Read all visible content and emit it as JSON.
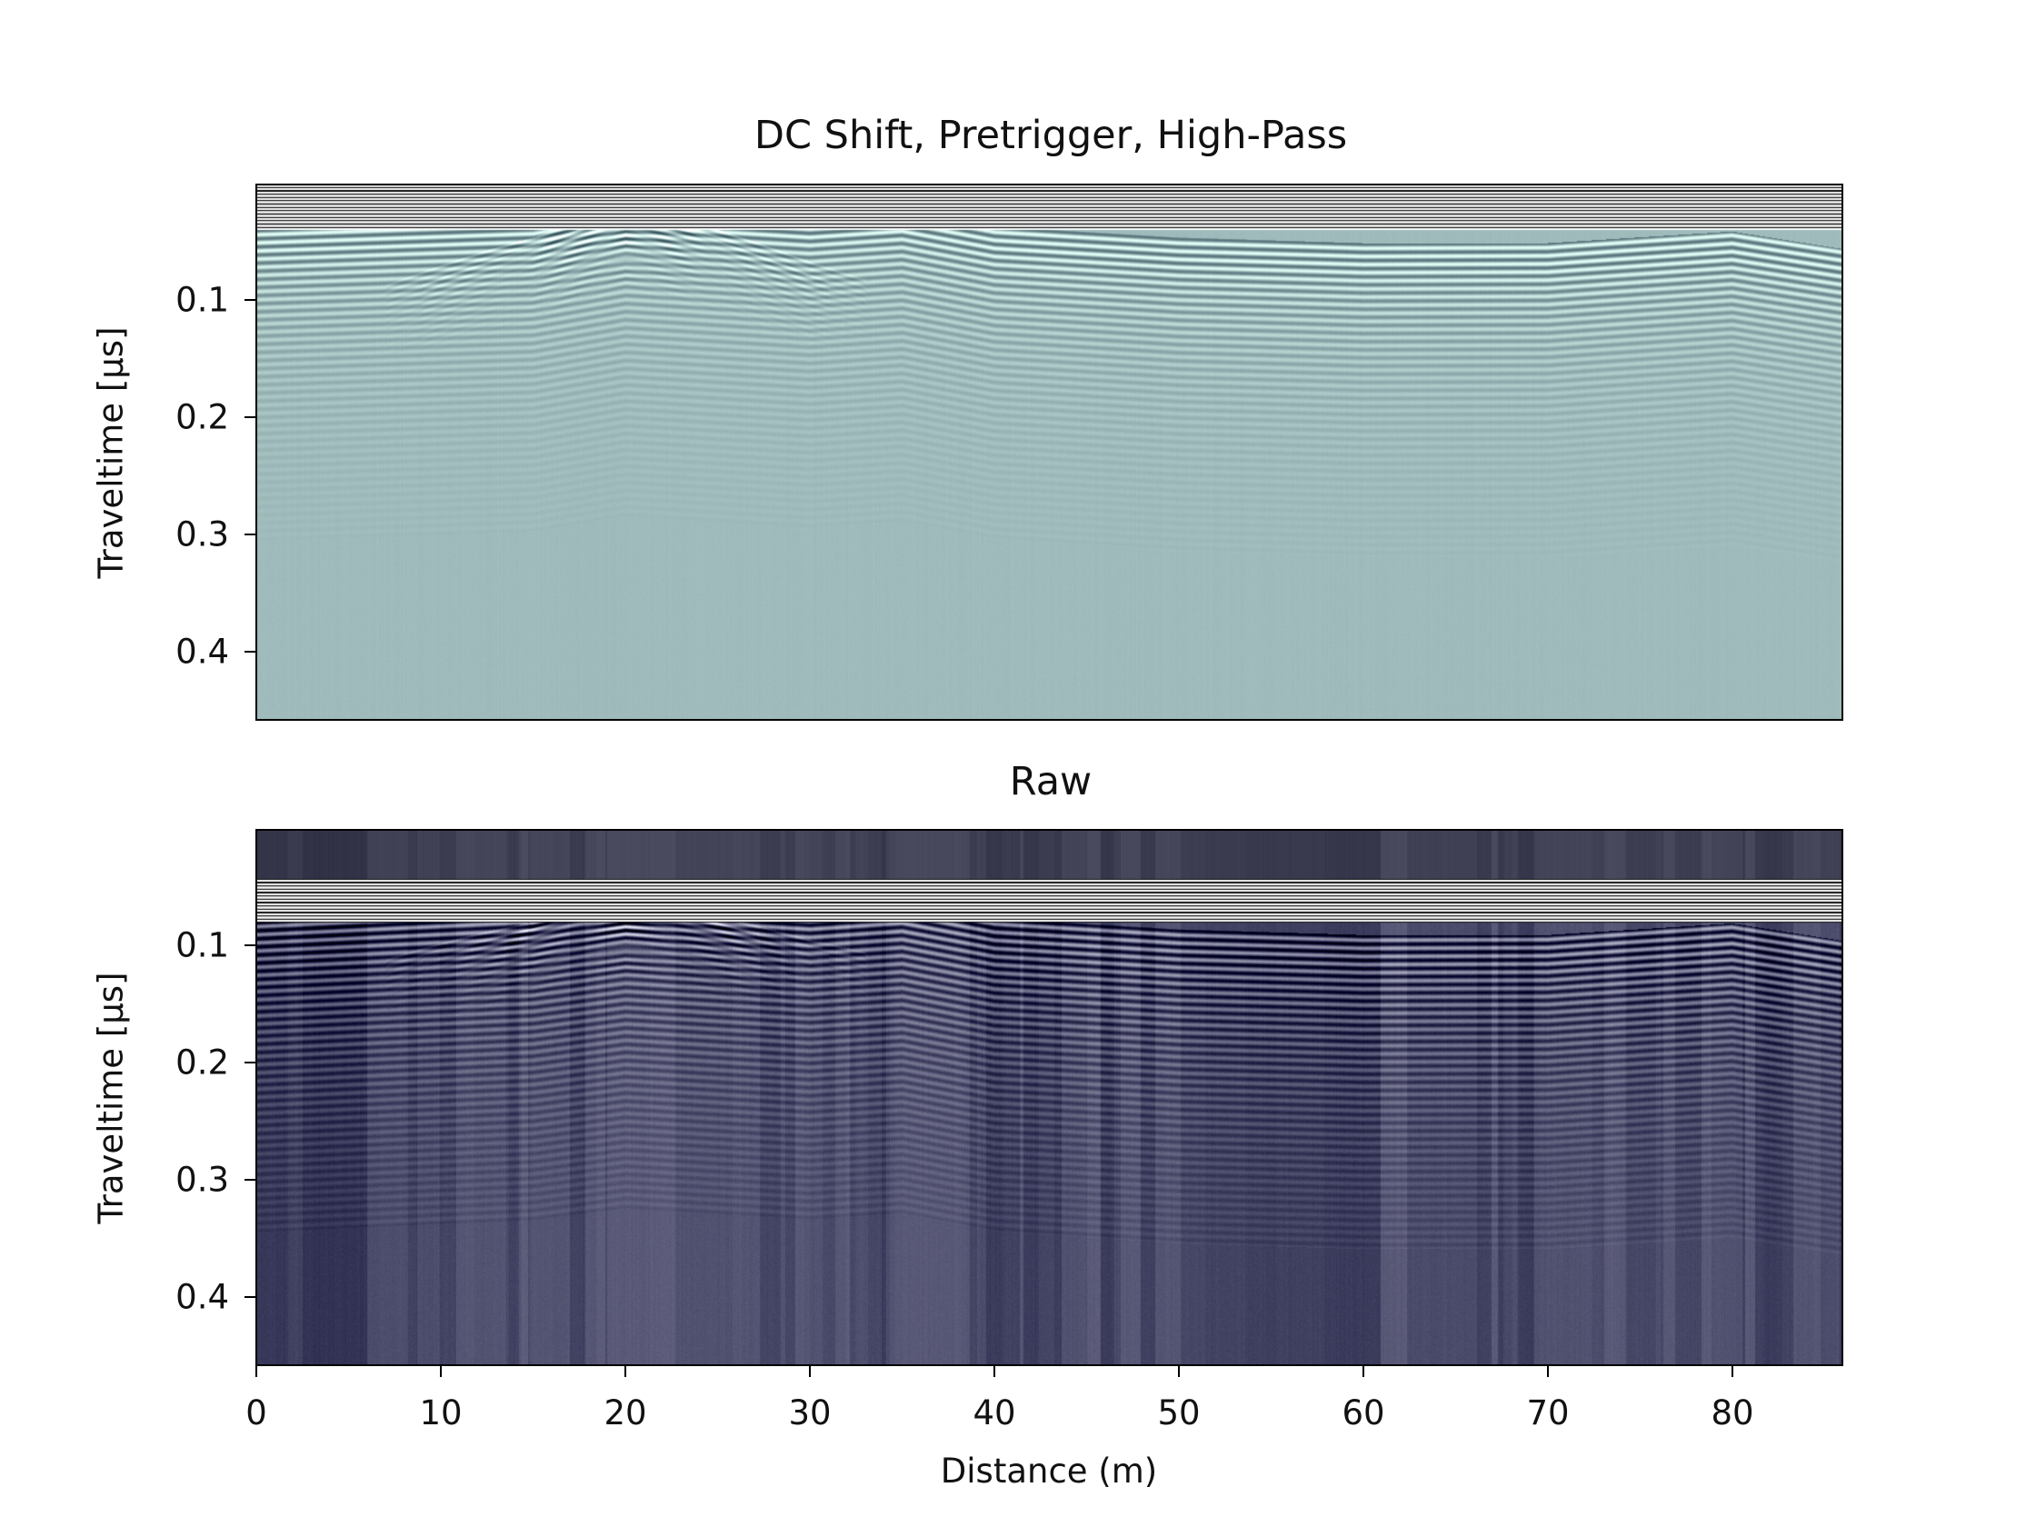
{
  "chart_data": [
    {
      "type": "heatmap",
      "title": "DC Shift, Pretrigger, High-Pass",
      "ylabel": "Traveltime [µs]",
      "xlabel": "",
      "xlim": [
        0,
        86
      ],
      "ylim": [
        0.46,
        0.0
      ],
      "yticks": [
        0.1,
        0.2,
        0.3,
        0.4
      ],
      "ytick_labels": [
        "0.1",
        "0.2",
        "0.3",
        "0.4"
      ],
      "xticks": [],
      "colormap": "bone",
      "background_color": "#9fbbbb",
      "features": {
        "direct_wave_bands_us": [
          0.01,
          0.02,
          0.035
        ],
        "surface_reflection_us": {
          "x": [
            0,
            15,
            20,
            25,
            30,
            35,
            40,
            50,
            60,
            70,
            75,
            80,
            86
          ],
          "y": [
            0.055,
            0.048,
            0.035,
            0.04,
            0.045,
            0.04,
            0.055,
            0.065,
            0.07,
            0.07,
            0.065,
            0.06,
            0.075
          ]
        },
        "diffraction_apex_x_m": [
          19,
          21
        ]
      }
    },
    {
      "type": "heatmap",
      "title": "Raw",
      "ylabel": "Traveltime [µs]",
      "xlabel": "Distance (m)",
      "xlim": [
        0,
        86
      ],
      "ylim": [
        0.46,
        0.0
      ],
      "yticks": [
        0.1,
        0.2,
        0.3,
        0.4
      ],
      "ytick_labels": [
        "0.1",
        "0.2",
        "0.3",
        "0.4"
      ],
      "xticks": [
        0,
        10,
        20,
        30,
        40,
        50,
        60,
        70,
        80
      ],
      "xtick_labels": [
        "0",
        "10",
        "20",
        "30",
        "40",
        "50",
        "60",
        "70",
        "80"
      ],
      "colormap": "bone",
      "background_color": "#4a4a6a",
      "features": {
        "direct_wave_bands_us": [
          0.05,
          0.06,
          0.075
        ],
        "surface_reflection_us": {
          "x": [
            0,
            15,
            20,
            25,
            30,
            35,
            40,
            50,
            60,
            70,
            75,
            80,
            86
          ],
          "y": [
            0.095,
            0.085,
            0.075,
            0.08,
            0.085,
            0.08,
            0.095,
            0.105,
            0.11,
            0.11,
            0.105,
            0.1,
            0.115
          ]
        },
        "diffraction_apex_x_m": [
          19,
          21
        ]
      }
    }
  ]
}
